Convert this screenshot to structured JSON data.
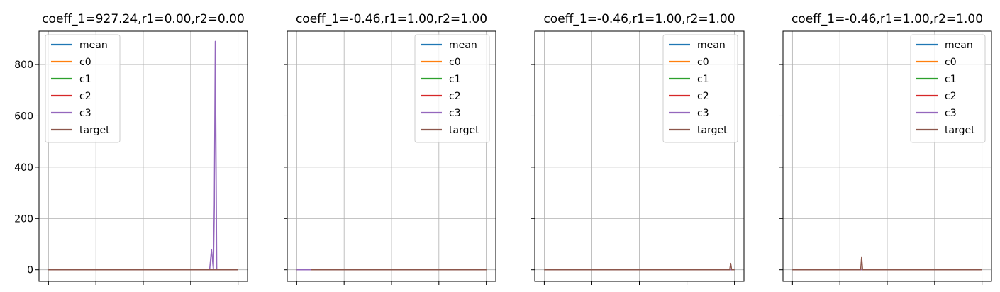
{
  "chart_data": [
    {
      "type": "line",
      "title": "coeff_1=927.24,r1=0.00,r2=0.00",
      "ylim": [
        -45,
        930
      ],
      "xlim": [
        -2,
        42
      ],
      "x_ticks": [
        0,
        10,
        20,
        30,
        40
      ],
      "y_ticks": [
        0,
        200,
        400,
        600,
        800
      ],
      "y_tick_labels": [
        "0",
        "200",
        "400",
        "600",
        "800"
      ],
      "show_y_tick_labels": true,
      "grid": true,
      "legend_position": "upper-left",
      "legend": [
        "mean",
        "c0",
        "c1",
        "c2",
        "c3",
        "target"
      ],
      "series": [
        {
          "name": "mean",
          "color": "#1f77b4",
          "x": [
            0,
            40
          ],
          "y": [
            0,
            0
          ]
        },
        {
          "name": "c0",
          "color": "#ff7f0e",
          "x": [
            0,
            40
          ],
          "y": [
            0,
            0
          ]
        },
        {
          "name": "c1",
          "color": "#2ca02c",
          "x": [
            0,
            40
          ],
          "y": [
            0,
            0
          ]
        },
        {
          "name": "c2",
          "color": "#d62728",
          "x": [
            0,
            40
          ],
          "y": [
            0,
            0
          ]
        },
        {
          "name": "c3",
          "color": "#9467bd",
          "x": [
            0,
            34.0,
            34.4,
            34.8,
            35.0,
            35.2,
            35.5,
            35.8,
            40
          ],
          "y": [
            0,
            0,
            80,
            0,
            255,
            890,
            0,
            0,
            0
          ]
        },
        {
          "name": "target",
          "color": "#8c564b",
          "x": [
            0,
            40
          ],
          "y": [
            0,
            0
          ]
        }
      ]
    },
    {
      "type": "line",
      "title": "coeff_1=-0.46,r1=1.00,r2=1.00",
      "ylim": [
        -45,
        930
      ],
      "xlim": [
        -2,
        42
      ],
      "x_ticks": [
        0,
        10,
        20,
        30,
        40
      ],
      "y_ticks": [
        0,
        200,
        400,
        600,
        800
      ],
      "y_tick_labels": [
        "",
        "",
        "",
        "",
        ""
      ],
      "show_y_tick_labels": false,
      "grid": true,
      "legend_position": "upper-right",
      "legend": [
        "mean",
        "c0",
        "c1",
        "c2",
        "c3",
        "target"
      ],
      "series": [
        {
          "name": "mean",
          "color": "#1f77b4",
          "x": [
            0,
            40
          ],
          "y": [
            0,
            0
          ]
        },
        {
          "name": "c0",
          "color": "#ff7f0e",
          "x": [
            0,
            40
          ],
          "y": [
            0,
            0
          ]
        },
        {
          "name": "c1",
          "color": "#2ca02c",
          "x": [
            0,
            40
          ],
          "y": [
            0,
            0
          ]
        },
        {
          "name": "c2",
          "color": "#d62728",
          "x": [
            0,
            40
          ],
          "y": [
            0,
            0
          ]
        },
        {
          "name": "c3",
          "color": "#9467bd",
          "x": [
            0,
            3
          ],
          "y": [
            0,
            0
          ]
        },
        {
          "name": "target",
          "color": "#8c564b",
          "x": [
            3,
            40
          ],
          "y": [
            0,
            0
          ]
        }
      ]
    },
    {
      "type": "line",
      "title": "coeff_1=-0.46,r1=1.00,r2=1.00",
      "ylim": [
        -45,
        930
      ],
      "xlim": [
        -2,
        42
      ],
      "x_ticks": [
        0,
        10,
        20,
        30,
        40
      ],
      "y_ticks": [
        0,
        200,
        400,
        600,
        800
      ],
      "y_tick_labels": [
        "",
        "",
        "",
        "",
        ""
      ],
      "show_y_tick_labels": false,
      "grid": true,
      "legend_position": "upper-right",
      "legend": [
        "mean",
        "c0",
        "c1",
        "c2",
        "c3",
        "target"
      ],
      "series": [
        {
          "name": "mean",
          "color": "#1f77b4",
          "x": [
            0,
            40
          ],
          "y": [
            0,
            0
          ]
        },
        {
          "name": "c0",
          "color": "#ff7f0e",
          "x": [
            0,
            40
          ],
          "y": [
            0,
            0
          ]
        },
        {
          "name": "c1",
          "color": "#2ca02c",
          "x": [
            0,
            40
          ],
          "y": [
            0,
            0
          ]
        },
        {
          "name": "c2",
          "color": "#d62728",
          "x": [
            0,
            40
          ],
          "y": [
            0,
            0
          ]
        },
        {
          "name": "c3",
          "color": "#9467bd",
          "x": [
            0,
            40
          ],
          "y": [
            0,
            0
          ]
        },
        {
          "name": "target",
          "color": "#8c564b",
          "x": [
            0,
            39.0,
            39.2,
            39.4,
            40
          ],
          "y": [
            0,
            0,
            25,
            0,
            0
          ]
        }
      ]
    },
    {
      "type": "line",
      "title": "coeff_1=-0.46,r1=1.00,r2=1.00",
      "ylim": [
        -45,
        930
      ],
      "xlim": [
        -2,
        42
      ],
      "x_ticks": [
        0,
        10,
        20,
        30,
        40
      ],
      "y_ticks": [
        0,
        200,
        400,
        600,
        800
      ],
      "y_tick_labels": [
        "",
        "",
        "",
        "",
        ""
      ],
      "show_y_tick_labels": false,
      "grid": true,
      "legend_position": "upper-right",
      "legend": [
        "mean",
        "c0",
        "c1",
        "c2",
        "c3",
        "target"
      ],
      "series": [
        {
          "name": "mean",
          "color": "#1f77b4",
          "x": [
            0,
            40
          ],
          "y": [
            0,
            0
          ]
        },
        {
          "name": "c0",
          "color": "#ff7f0e",
          "x": [
            0,
            40
          ],
          "y": [
            0,
            0
          ]
        },
        {
          "name": "c1",
          "color": "#2ca02c",
          "x": [
            0,
            40
          ],
          "y": [
            0,
            0
          ]
        },
        {
          "name": "c2",
          "color": "#d62728",
          "x": [
            0,
            40
          ],
          "y": [
            0,
            0
          ]
        },
        {
          "name": "c3",
          "color": "#9467bd",
          "x": [
            0,
            40
          ],
          "y": [
            0,
            0
          ]
        },
        {
          "name": "target",
          "color": "#8c564b",
          "x": [
            0,
            14.4,
            14.6,
            14.8,
            40
          ],
          "y": [
            0,
            0,
            50,
            0,
            0
          ]
        }
      ]
    }
  ]
}
